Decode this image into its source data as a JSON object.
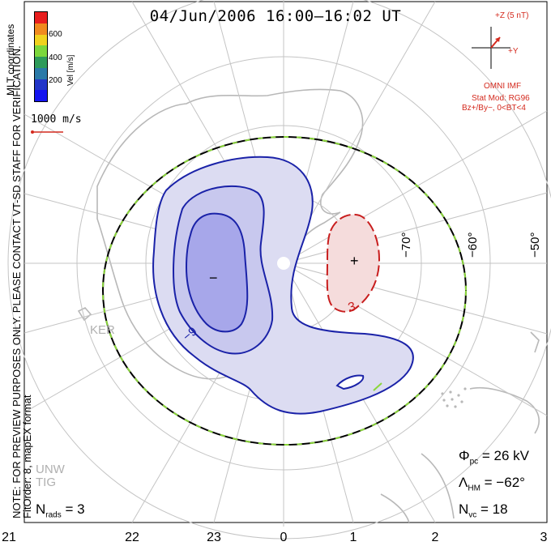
{
  "title": "04/Jun/2006  16:00–16:02  UT",
  "colorbar": {
    "unit_label": "Vel [m/s]",
    "ticks": [
      "600",
      "400",
      "200"
    ],
    "colors": [
      "#e81e1e",
      "#f08a1e",
      "#f0d21e",
      "#7cd73c",
      "#2e9b5a",
      "#2a7aa8",
      "#2236c8",
      "#1414f0"
    ]
  },
  "coord_label": "MLT coordinates",
  "velocity_scale": "1000 m/s",
  "note_lines": [
    "NOTE: FOR PREVIEW PURPOSES ONLY. PLEASE CONTACT VT-SD STAFF FOR VERIFICATION.",
    "FitOrder: 8, mapEX format"
  ],
  "imf": {
    "z_label": "+Z (5 nT)",
    "y_label": "+Y",
    "source": "OMNI IMF",
    "model_line1": "Stat Mod: RG96",
    "model_line2": "Bz+/By−, 0<BT<4"
  },
  "latitude_labels": [
    "−70°",
    "−60°",
    "−50°"
  ],
  "mlt_labels": [
    "21",
    "22",
    "23",
    "0",
    "1",
    "2",
    "3"
  ],
  "stations": [
    "KER",
    "UNW",
    "TIG"
  ],
  "contour_labels": {
    "negative": "−9",
    "positive": "3"
  },
  "stats": {
    "phi_pc_label": "Φ",
    "phi_pc_sub": "pc",
    "phi_pc_value": "= 26 kV",
    "lambda_hm_label": "Λ",
    "lambda_hm_sub": "HM",
    "lambda_hm_value": "= −62°",
    "nvc_label": "N",
    "nvc_sub": "vc",
    "nvc_value": "= 18",
    "nrads_label": "N",
    "nrads_sub": "rads",
    "nrads_value": "= 3"
  },
  "symbols": {
    "min": "−",
    "max": "+"
  }
}
